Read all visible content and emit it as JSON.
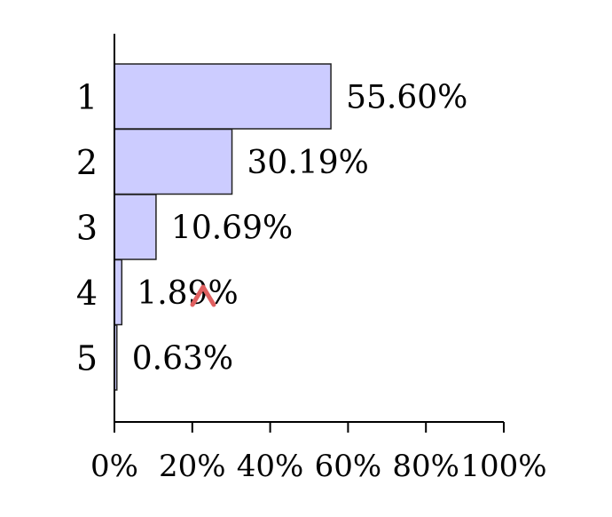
{
  "chart_data": {
    "type": "bar",
    "orientation": "horizontal",
    "categories": [
      "1",
      "2",
      "3",
      "4",
      "5"
    ],
    "values": [
      55.6,
      30.19,
      10.69,
      1.89,
      0.63
    ],
    "data_labels": [
      "55.60%",
      "30.19%",
      "10.69%",
      "1.89%",
      "0.63%"
    ],
    "title": "",
    "xlabel": "",
    "ylabel": "",
    "xlim": [
      0,
      100
    ],
    "x_ticks": [
      0,
      20,
      40,
      60,
      80,
      100
    ],
    "x_tick_labels": [
      "0%",
      "20%",
      "40%",
      "60%",
      "80%",
      "100%"
    ],
    "grid": false,
    "legend": "none",
    "colors": {
      "bar_fill": "#ccccff",
      "bar_stroke": "#222222",
      "axis": "#000000",
      "marker": "#e06060"
    },
    "annotations": [
      {
        "type": "caret-marker",
        "near_category": "4"
      }
    ]
  }
}
